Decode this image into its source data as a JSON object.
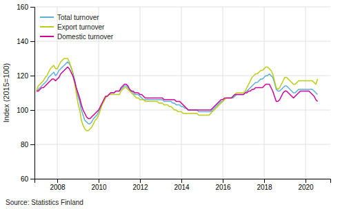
{
  "chart_data": {
    "type": "line",
    "ylabel": "Index (2015=100)",
    "annotations": [
      "Source: Statistics Finland"
    ],
    "xlim": [
      2006.9,
      2021.2
    ],
    "xticks": [
      2008,
      2010,
      2012,
      2014,
      2016,
      2018,
      2020
    ],
    "ylim": [
      60,
      160
    ],
    "yticks": [
      60,
      80,
      100,
      120,
      140,
      160
    ],
    "grid": true,
    "legend": "upper left",
    "x": [
      2007,
      2007.0833,
      2007.1667,
      2007.25,
      2007.3333,
      2007.4167,
      2007.5,
      2007.5833,
      2007.6667,
      2007.75,
      2007.8333,
      2007.9167,
      2008,
      2008.0833,
      2008.1667,
      2008.25,
      2008.3333,
      2008.4167,
      2008.5,
      2008.5833,
      2008.6667,
      2008.75,
      2008.8333,
      2008.9167,
      2009,
      2009.0833,
      2009.1667,
      2009.25,
      2009.3333,
      2009.4167,
      2009.5,
      2009.5833,
      2009.6667,
      2009.75,
      2009.8333,
      2009.9167,
      2010,
      2010.0833,
      2010.1667,
      2010.25,
      2010.3333,
      2010.4167,
      2010.5,
      2010.5833,
      2010.6667,
      2010.75,
      2010.8333,
      2010.9167,
      2011,
      2011.0833,
      2011.1667,
      2011.25,
      2011.3333,
      2011.4167,
      2011.5,
      2011.5833,
      2011.6667,
      2011.75,
      2011.8333,
      2011.9167,
      2012,
      2012.0833,
      2012.1667,
      2012.25,
      2012.3333,
      2012.4167,
      2012.5,
      2012.5833,
      2012.6667,
      2012.75,
      2012.8333,
      2012.9167,
      2013,
      2013.0833,
      2013.1667,
      2013.25,
      2013.3333,
      2013.4167,
      2013.5,
      2013.5833,
      2013.6667,
      2013.75,
      2013.8333,
      2013.9167,
      2014,
      2014.0833,
      2014.1667,
      2014.25,
      2014.3333,
      2014.4167,
      2014.5,
      2014.5833,
      2014.6667,
      2014.75,
      2014.8333,
      2014.9167,
      2015,
      2015.0833,
      2015.1667,
      2015.25,
      2015.3333,
      2015.4167,
      2015.5,
      2015.5833,
      2015.6667,
      2015.75,
      2015.8333,
      2015.9167,
      2016,
      2016.0833,
      2016.1667,
      2016.25,
      2016.3333,
      2016.4167,
      2016.5,
      2016.5833,
      2016.6667,
      2016.75,
      2016.8333,
      2016.9167,
      2017,
      2017.0833,
      2017.1667,
      2017.25,
      2017.3333,
      2017.4167,
      2017.5,
      2017.5833,
      2017.6667,
      2017.75,
      2017.8333,
      2017.9167,
      2018,
      2018.0833,
      2018.1667,
      2018.25,
      2018.3333,
      2018.4167,
      2018.5,
      2018.5833,
      2018.6667,
      2018.75,
      2018.8333,
      2018.9167,
      2019,
      2019.0833,
      2019.1667,
      2019.25,
      2019.3333,
      2019.4167,
      2019.5,
      2019.5833,
      2019.6667,
      2019.75,
      2019.8333,
      2019.9167,
      2020,
      2020.0833,
      2020.1667,
      2020.25,
      2020.3333,
      2020.4167,
      2020.5,
      2020.5833
    ],
    "series": [
      {
        "name": "Total turnover",
        "color": "#5BAFD6",
        "values": [
          111,
          112,
          113,
          114,
          115,
          116,
          117,
          119,
          120,
          121,
          122,
          120,
          121,
          123,
          124,
          125,
          126,
          127,
          128,
          127,
          125,
          122,
          118,
          113,
          108,
          105,
          100,
          97,
          94,
          93,
          92,
          92,
          93,
          95,
          96,
          97,
          99,
          101,
          103,
          105,
          107,
          108,
          109,
          110,
          110,
          110,
          111,
          111,
          111,
          112,
          113,
          114,
          114,
          113,
          112,
          111,
          110,
          109,
          109,
          109,
          108,
          107,
          106,
          106,
          106,
          106,
          106,
          106,
          106,
          106,
          106,
          106,
          106,
          106,
          105,
          105,
          105,
          105,
          105,
          104,
          104,
          103,
          103,
          103,
          102,
          102,
          101,
          101,
          100,
          100,
          100,
          100,
          100,
          100,
          99,
          99,
          99,
          99,
          99,
          99,
          99,
          99,
          100,
          101,
          102,
          103,
          104,
          105,
          105,
          106,
          107,
          107,
          107,
          107,
          107,
          108,
          109,
          109,
          109,
          109,
          109,
          110,
          111,
          112,
          113,
          114,
          115,
          116,
          116,
          117,
          118,
          118,
          119,
          120,
          120,
          121,
          120,
          119,
          116,
          112,
          111,
          111,
          112,
          113,
          114,
          114,
          113,
          112,
          111,
          110,
          110,
          111,
          112,
          112,
          112,
          112,
          112,
          112,
          112,
          112,
          112,
          111,
          110,
          109
        ]
      },
      {
        "name": "Export turnover",
        "color": "#BBCC11",
        "values": [
          111,
          114,
          115,
          116,
          117,
          119,
          120,
          122,
          124,
          125,
          126,
          124,
          124,
          126,
          128,
          129,
          130,
          130,
          130,
          128,
          125,
          121,
          116,
          110,
          104,
          100,
          94,
          91,
          89,
          88,
          88,
          89,
          90,
          92,
          94,
          95,
          97,
          100,
          103,
          105,
          107,
          108,
          109,
          109,
          109,
          109,
          109,
          109,
          109,
          111,
          112,
          113,
          113,
          112,
          111,
          110,
          109,
          108,
          107,
          107,
          106,
          106,
          106,
          105,
          105,
          105,
          105,
          105,
          105,
          105,
          105,
          104,
          104,
          104,
          103,
          103,
          103,
          102,
          102,
          101,
          100,
          100,
          99,
          99,
          99,
          98,
          98,
          98,
          98,
          98,
          98,
          98,
          98,
          98,
          97,
          97,
          97,
          97,
          97,
          97,
          97,
          98,
          99,
          100,
          101,
          102,
          103,
          104,
          105,
          106,
          107,
          107,
          107,
          107,
          108,
          109,
          110,
          110,
          110,
          110,
          110,
          111,
          113,
          115,
          117,
          119,
          120,
          121,
          121,
          122,
          123,
          123,
          124,
          125,
          125,
          124,
          123,
          121,
          117,
          113,
          112,
          113,
          115,
          117,
          119,
          119,
          118,
          117,
          116,
          115,
          115,
          116,
          117,
          117,
          117,
          117,
          117,
          117,
          117,
          117,
          117,
          116,
          115,
          118
        ]
      },
      {
        "name": "Domestic turnover",
        "color": "#CC0099",
        "values": [
          111,
          111,
          112,
          113,
          113,
          114,
          115,
          116,
          117,
          118,
          118,
          117,
          118,
          119,
          121,
          122,
          123,
          124,
          125,
          124,
          122,
          120,
          117,
          113,
          110,
          107,
          103,
          100,
          98,
          96,
          95,
          95,
          96,
          97,
          98,
          99,
          100,
          102,
          104,
          106,
          108,
          108,
          109,
          110,
          110,
          110,
          111,
          111,
          111,
          113,
          114,
          115,
          115,
          114,
          112,
          111,
          111,
          110,
          110,
          110,
          109,
          109,
          108,
          107,
          107,
          107,
          107,
          107,
          107,
          107,
          107,
          107,
          107,
          107,
          106,
          106,
          106,
          106,
          106,
          106,
          106,
          105,
          105,
          105,
          104,
          103,
          102,
          101,
          100,
          100,
          100,
          100,
          100,
          100,
          100,
          100,
          100,
          100,
          100,
          100,
          100,
          100,
          101,
          102,
          103,
          104,
          105,
          106,
          106,
          107,
          107,
          107,
          107,
          107,
          108,
          109,
          109,
          109,
          109,
          109,
          109,
          110,
          110,
          111,
          111,
          112,
          112,
          113,
          113,
          113,
          113,
          113,
          114,
          115,
          115,
          115,
          113,
          111,
          108,
          105,
          105,
          106,
          108,
          110,
          111,
          111,
          110,
          109,
          108,
          107,
          108,
          109,
          110,
          111,
          111,
          111,
          111,
          111,
          111,
          110,
          109,
          108,
          106,
          105
        ]
      }
    ]
  }
}
